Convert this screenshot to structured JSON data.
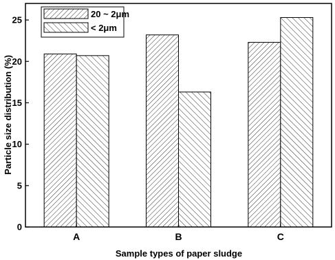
{
  "chart_data": {
    "type": "bar",
    "title": "",
    "xlabel": "Sample types of paper sludge",
    "ylabel": "Particle size distribution (%)",
    "categories": [
      "A",
      "B",
      "C"
    ],
    "ylim": [
      0,
      27
    ],
    "yticks": [
      0,
      5,
      10,
      15,
      20,
      25
    ],
    "legend_position": "top-left",
    "grid": false,
    "series": [
      {
        "name": "20 ~ 2μm",
        "pattern": "forward-hatch",
        "values": [
          20.9,
          23.2,
          22.3
        ]
      },
      {
        "name": "< 2μm",
        "pattern": "back-hatch",
        "values": [
          20.7,
          16.3,
          25.3
        ]
      }
    ]
  }
}
